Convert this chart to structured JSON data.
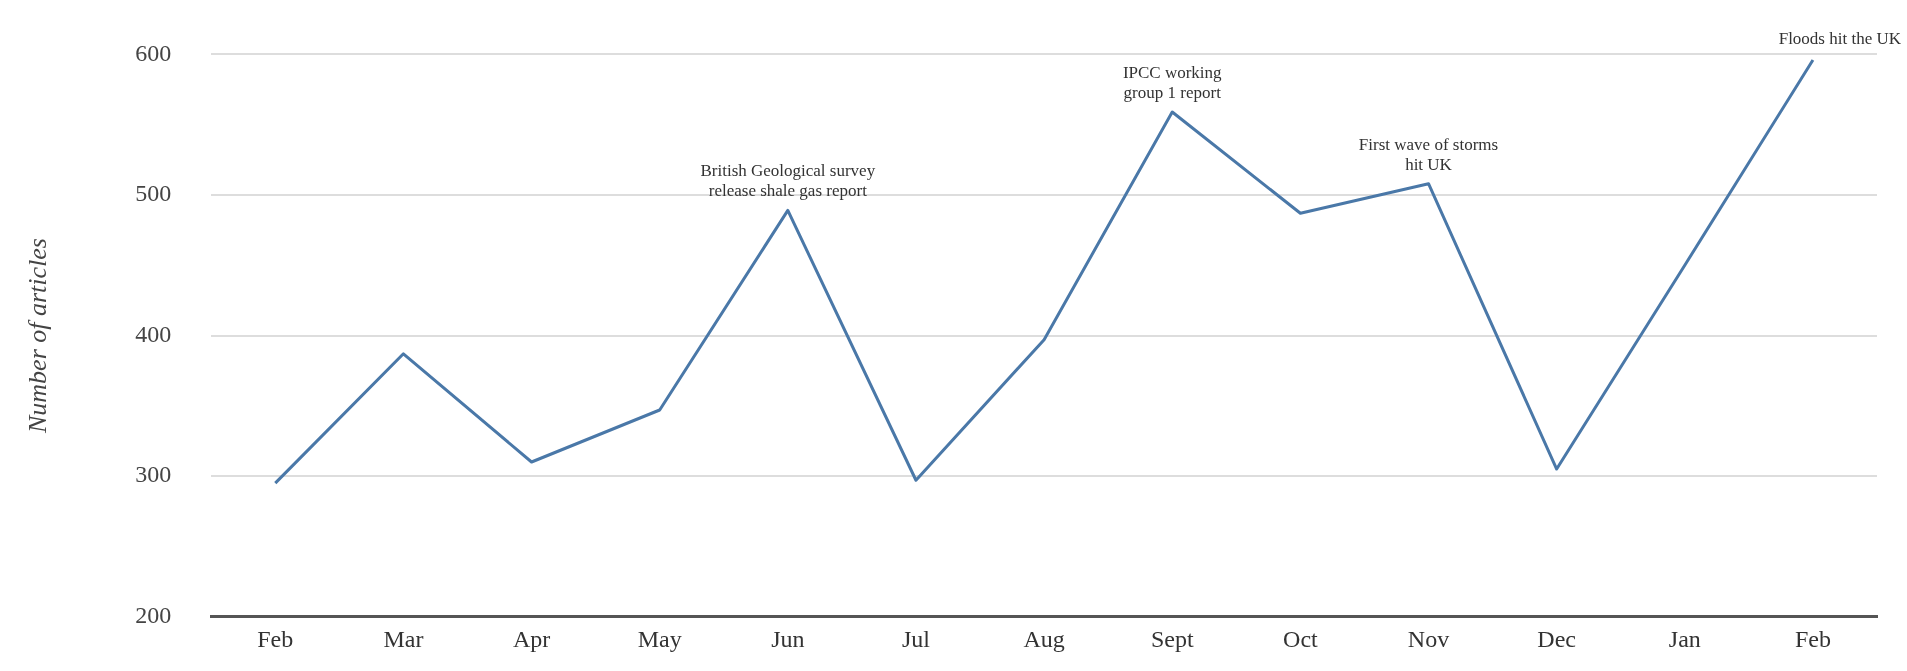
{
  "chart_data": {
    "type": "line",
    "ylabel": "Number of articles",
    "categories": [
      "Feb",
      "Mar",
      "Apr",
      "May",
      "Jun",
      "Jul",
      "Aug",
      "Sept",
      "Oct",
      "Nov",
      "Dec",
      "Jan",
      "Feb"
    ],
    "series": [
      {
        "color": "#4a78a8",
        "values": [
          295,
          387,
          310,
          347,
          489,
          297,
          397,
          559,
          487,
          508,
          305,
          450,
          596
        ]
      }
    ],
    "ylim": [
      200,
      600
    ],
    "yticks": [
      200,
      300,
      400,
      500,
      600
    ],
    "grid": "y",
    "legend": false,
    "marker": "none",
    "line_style": "solid",
    "annotations": [
      {
        "text": "British Geological survey\nrelease shale gas report",
        "x": "Jun",
        "y": 489
      },
      {
        "text": "IPCC working\ngroup 1 report",
        "x": "Sept",
        "y": 559
      },
      {
        "text": "First wave of storms\nhit UK",
        "x": "Nov",
        "y": 508
      },
      "Floods hit the UK"
    ]
  }
}
